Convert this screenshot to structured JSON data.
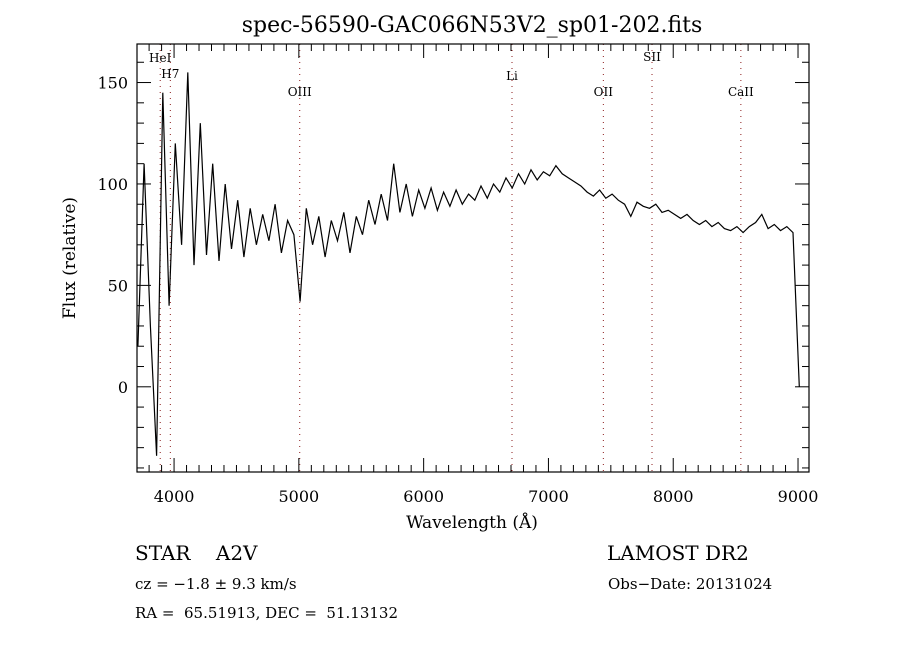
{
  "chart_data": {
    "type": "line",
    "title": "spec-56590-GAC066N53V2_sp01-202.fits",
    "xlabel": "Wavelength (Å)",
    "ylabel": "Flux (relative)",
    "xlim": [
      3703,
      9088
    ],
    "ylim": [
      -42,
      169
    ],
    "x_ticks": [
      4000,
      5000,
      6000,
      7000,
      8000,
      9000
    ],
    "x_tick_labels": [
      "4000",
      "5000",
      "6000",
      "7000",
      "8000",
      "9000"
    ],
    "y_ticks": [
      0,
      50,
      100,
      150
    ],
    "y_tick_labels": [
      "0",
      "50",
      "100",
      "150"
    ],
    "x_minor_step": 100,
    "y_minor_step": 10,
    "grid": false,
    "series": [
      {
        "name": "flux",
        "x_start": 3710,
        "x_step": 50,
        "values": [
          20,
          110,
          30,
          -34,
          145,
          40,
          120,
          70,
          155,
          60,
          130,
          65,
          110,
          62,
          100,
          68,
          92,
          64,
          88,
          70,
          85,
          72,
          90,
          66,
          82,
          75,
          42,
          88,
          70,
          84,
          64,
          82,
          72,
          86,
          66,
          84,
          75,
          92,
          80,
          95,
          82,
          110,
          86,
          100,
          84,
          97,
          88,
          98,
          87,
          96,
          89,
          97,
          90,
          95,
          92,
          99,
          93,
          100,
          96,
          103,
          98,
          105,
          100,
          107,
          102,
          106,
          104,
          109,
          105,
          103,
          101,
          99,
          96,
          94,
          97,
          93,
          95,
          92,
          90,
          84,
          91,
          89,
          88,
          90,
          86,
          87,
          85,
          83,
          85,
          82,
          80,
          82,
          79,
          81,
          78,
          77,
          79,
          76,
          79,
          81,
          85,
          78,
          80,
          77,
          79,
          76,
          0
        ]
      }
    ],
    "line_markers": [
      {
        "label": "HeI",
        "x": 3889
      },
      {
        "label": "H7",
        "x": 3970
      },
      {
        "label": "OIII",
        "x": 5007
      },
      {
        "label": "Li",
        "x": 6708
      },
      {
        "label": "OII",
        "x": 7440
      },
      {
        "label": "SII",
        "x": 7830
      },
      {
        "label": "CaII",
        "x": 8542
      }
    ]
  },
  "info": {
    "object_class": "STAR    A2V",
    "survey": "LAMOST DR2",
    "cz": "cz = −1.8 ± 9.3 km/s",
    "obs_date": "Obs−Date: 20131024",
    "coords": "RA =  65.51913, DEC =  51.13132"
  },
  "colors": {
    "spectrum": "#000000",
    "marker": "#8b1a1a"
  }
}
